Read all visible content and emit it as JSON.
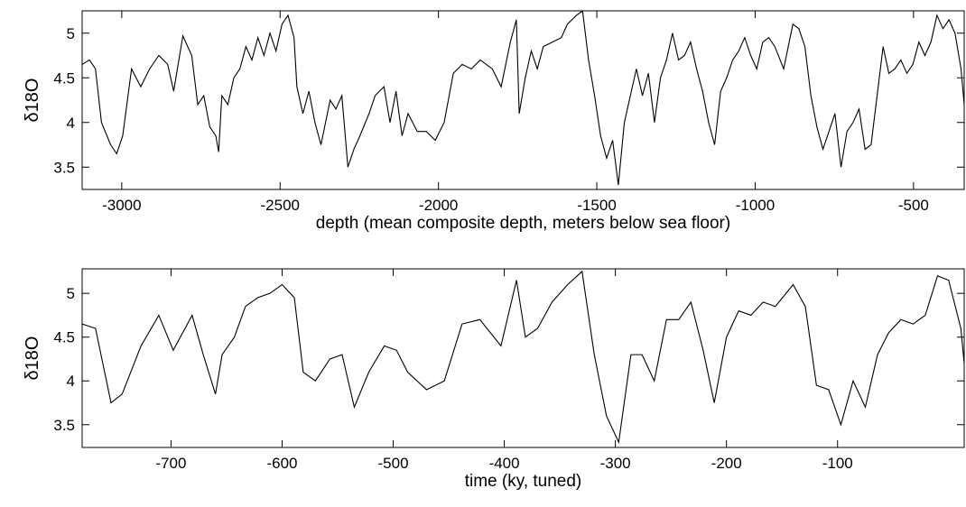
{
  "chart_data": [
    {
      "type": "line",
      "xlabel": "depth (mean composite depth, meters below sea floor)",
      "ylabel": "δ18O",
      "color": "#000000",
      "xlim": [
        -3125,
        -340
      ],
      "ylim": [
        3.25,
        5.25
      ],
      "xticks": [
        -3000,
        -2500,
        -2000,
        -1500,
        -1000,
        -500
      ],
      "yticks": [
        3.5,
        4,
        4.5,
        5
      ],
      "x": [
        -3125,
        -3102,
        -3083,
        -3064,
        -3035,
        -3016,
        -2997,
        -2969,
        -2940,
        -2912,
        -2883,
        -2855,
        -2836,
        -2807,
        -2779,
        -2760,
        -2741,
        -2722,
        -2703,
        -2694,
        -2684,
        -2665,
        -2646,
        -2627,
        -2608,
        -2589,
        -2570,
        -2551,
        -2532,
        -2513,
        -2494,
        -2475,
        -2456,
        -2447,
        -2428,
        -2409,
        -2390,
        -2371,
        -2342,
        -2324,
        -2305,
        -2286,
        -2267,
        -2248,
        -2219,
        -2200,
        -2172,
        -2153,
        -2134,
        -2115,
        -2096,
        -2067,
        -2039,
        -2010,
        -1982,
        -1953,
        -1925,
        -1896,
        -1868,
        -1830,
        -1802,
        -1773,
        -1754,
        -1745,
        -1726,
        -1707,
        -1688,
        -1669,
        -1640,
        -1612,
        -1593,
        -1564,
        -1545,
        -1526,
        -1507,
        -1488,
        -1469,
        -1450,
        -1432,
        -1413,
        -1394,
        -1375,
        -1356,
        -1337,
        -1318,
        -1299,
        -1280,
        -1261,
        -1242,
        -1223,
        -1204,
        -1185,
        -1166,
        -1147,
        -1128,
        -1109,
        -1090,
        -1071,
        -1052,
        -1033,
        -1014,
        -995,
        -976,
        -957,
        -938,
        -910,
        -881,
        -862,
        -843,
        -824,
        -805,
        -786,
        -767,
        -748,
        -729,
        -710,
        -691,
        -672,
        -653,
        -634,
        -615,
        -596,
        -578,
        -559,
        -540,
        -521,
        -502,
        -483,
        -464,
        -445,
        -426,
        -407,
        -388,
        -369,
        -350,
        -340
      ],
      "values": [
        4.65,
        4.7,
        4.6,
        4.0,
        3.75,
        3.65,
        3.85,
        4.6,
        4.4,
        4.6,
        4.75,
        4.65,
        4.35,
        4.97,
        4.75,
        4.2,
        4.3,
        3.95,
        3.85,
        3.67,
        4.3,
        4.2,
        4.5,
        4.6,
        4.85,
        4.7,
        4.95,
        4.75,
        5.0,
        4.8,
        5.1,
        5.2,
        4.95,
        4.4,
        4.1,
        4.35,
        4.0,
        3.75,
        4.25,
        4.15,
        4.3,
        3.5,
        3.7,
        3.85,
        4.1,
        4.3,
        4.4,
        4.0,
        4.35,
        3.85,
        4.1,
        3.9,
        3.9,
        3.8,
        4.0,
        4.55,
        4.65,
        4.6,
        4.7,
        4.6,
        4.4,
        4.9,
        5.15,
        4.1,
        4.5,
        4.8,
        4.6,
        4.85,
        4.9,
        4.95,
        5.1,
        5.2,
        5.25,
        4.7,
        4.3,
        3.85,
        3.6,
        3.8,
        3.3,
        4.0,
        4.3,
        4.6,
        4.3,
        4.55,
        4.0,
        4.5,
        4.7,
        5.0,
        4.7,
        4.75,
        4.9,
        4.6,
        4.35,
        4.0,
        3.75,
        4.35,
        4.5,
        4.7,
        4.8,
        4.95,
        4.75,
        4.6,
        4.9,
        4.95,
        4.85,
        4.6,
        5.1,
        5.05,
        4.85,
        4.3,
        3.95,
        3.7,
        3.9,
        4.1,
        3.5,
        3.9,
        4.0,
        4.15,
        3.7,
        3.75,
        4.3,
        4.85,
        4.55,
        4.6,
        4.7,
        4.55,
        4.65,
        4.9,
        4.75,
        4.9,
        5.2,
        5.05,
        5.15,
        5.0,
        4.6,
        4.2
      ]
    },
    {
      "type": "line",
      "xlabel": "time (ky, tuned)",
      "ylabel": "δ18O",
      "color": "#000000",
      "xlim": [
        -780,
        14
      ],
      "ylim": [
        3.24,
        5.28
      ],
      "xticks": [
        -700,
        -600,
        -500,
        -400,
        -300,
        -200,
        -100
      ],
      "yticks": [
        3.5,
        4,
        4.5,
        5
      ],
      "x": [
        -780,
        -768,
        -754,
        -744,
        -727,
        -711,
        -698,
        -681,
        -671,
        -660,
        -654,
        -643,
        -633,
        -622,
        -611,
        -600,
        -589,
        -581,
        -570,
        -557,
        -546,
        -535,
        -522,
        -508,
        -497,
        -487,
        -470,
        -454,
        -438,
        -422,
        -403,
        -389,
        -381,
        -370,
        -357,
        -343,
        -330,
        -319,
        -308,
        -297,
        -286,
        -276,
        -265,
        -254,
        -243,
        -232,
        -221,
        -211,
        -200,
        -189,
        -178,
        -167,
        -156,
        -140,
        -129,
        -119,
        -108,
        -97,
        -86,
        -75,
        -64,
        -54,
        -43,
        -32,
        -21,
        -10,
        0,
        11,
        14
      ],
      "values": [
        4.65,
        4.6,
        3.75,
        3.85,
        4.4,
        4.75,
        4.35,
        4.75,
        4.3,
        3.85,
        4.3,
        4.5,
        4.85,
        4.95,
        5.0,
        5.1,
        4.95,
        4.1,
        4.0,
        4.25,
        4.3,
        3.7,
        4.1,
        4.4,
        4.35,
        4.1,
        3.9,
        4.0,
        4.65,
        4.7,
        4.4,
        5.15,
        4.5,
        4.6,
        4.9,
        5.1,
        5.25,
        4.3,
        3.6,
        3.3,
        4.3,
        4.3,
        4.0,
        4.7,
        4.7,
        4.9,
        4.35,
        3.75,
        4.5,
        4.8,
        4.75,
        4.9,
        4.85,
        5.1,
        4.85,
        3.95,
        3.9,
        3.5,
        4.0,
        3.7,
        4.3,
        4.55,
        4.7,
        4.65,
        4.75,
        5.2,
        5.15,
        4.6,
        4.2
      ]
    }
  ]
}
